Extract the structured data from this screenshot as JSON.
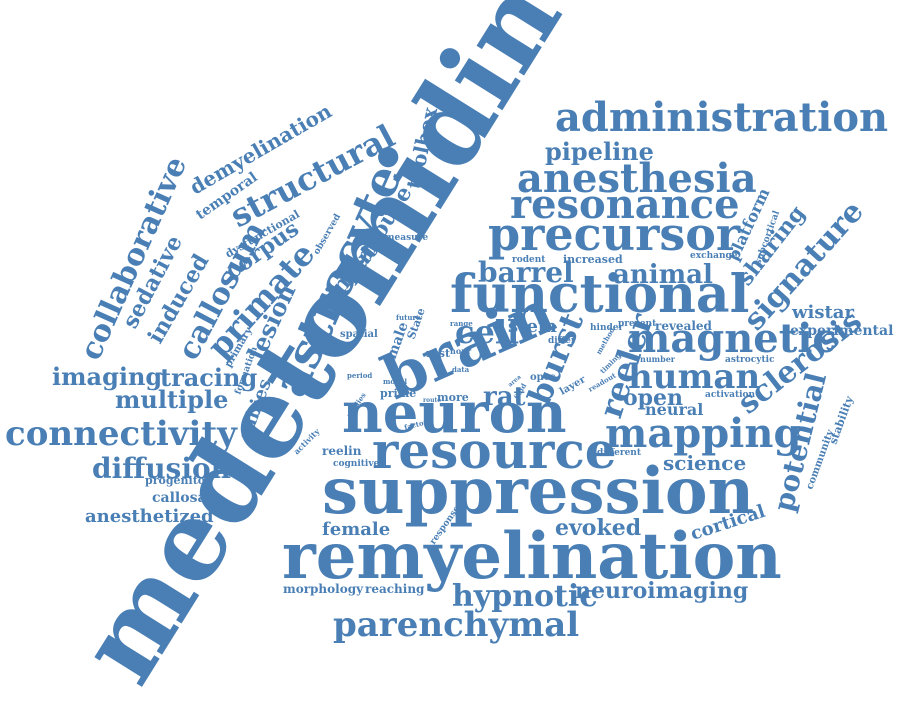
{
  "colors": {
    "word": "#4a7fb5",
    "background": "#ffffff"
  },
  "words": {
    "medetomidine": "medetomidine",
    "remyelination": "remyelination",
    "suppression": "suppression",
    "neuron": "neuron",
    "functional": "functional",
    "resource": "resource",
    "brain": "brain",
    "astrocyte": "astrocyte",
    "precursor": "precursor",
    "administration": "administration",
    "resonance": "resonance",
    "anesthesia": "anesthesia",
    "connectivity": "connectivity",
    "parenchymal": "parenchymal",
    "magnetic": "magnetic",
    "mapping": "mapping",
    "human": "human",
    "structural": "structural",
    "primate": "primate",
    "collaborative": "collaborative",
    "callosum": "callosum",
    "hypnotic": "hypnotic",
    "imaging": "imaging",
    "multiple": "multiple",
    "diffusion": "diffusion",
    "sclerosis": "sclerosis",
    "signature": "signature",
    "potential": "potential",
    "demyelination": "demyelination",
    "sedative": "sedative",
    "induced": "induced",
    "pipeline": "pipeline",
    "barrel": "barrel",
    "animal": "animal",
    "cell": "cell",
    "burst": "burst",
    "reeler": "reeler",
    "rat": "rat",
    "open": "open",
    "neural": "neural",
    "science": "science",
    "neuroimaging": "neuroimaging",
    "evoked": "evoked",
    "cortical": "cortical",
    "female": "female",
    "tracing": "tracing",
    "lesion": "lesion",
    "rabies": "rabies",
    "corpus": "corpus",
    "temporal": "temporal",
    "input": "input",
    "mouse": "mouse",
    "toolbox": "toolbox",
    "stem": "stem",
    "increased": "increased",
    "wistar": "wistar",
    "experimental": "experimental",
    "sharing": "sharing",
    "platform": "platform",
    "anesthetized": "anesthetized",
    "callosal": "callosal",
    "progenitor": "progenitor",
    "reelin": "reelin",
    "cognitive": "cognitive",
    "morphology": "morphology",
    "reaching": "reaching",
    "response": "response",
    "revealed": "revealed",
    "layer": "layer",
    "opcs": "opcs",
    "prime": "prime",
    "more": "more",
    "male": "male",
    "spatial": "spatial",
    "primary": "primary",
    "formation": "formation",
    "dysfunctional": "dysfunctional",
    "observed": "observed",
    "measure": "measure",
    "rodent": "rodent",
    "exchange": "exchange",
    "subcortical": "subcortical",
    "community": "community",
    "stability": "stability",
    "astrocytic": "astrocytic",
    "number": "number",
    "activation": "activation",
    "present": "present",
    "hinder": "hinder",
    "differ": "differ",
    "method": "method",
    "different": "different",
    "rest": "rest",
    "hour": "hour",
    "state": "State",
    "future": "future",
    "range": "range",
    "period": "period",
    "model": "model",
    "studies": "studies",
    "factor": "factor",
    "activity": "activity",
    "data": "data",
    "timing": "timing",
    "readout": "readout",
    "field": "field",
    "area": "area",
    "route": "route"
  }
}
